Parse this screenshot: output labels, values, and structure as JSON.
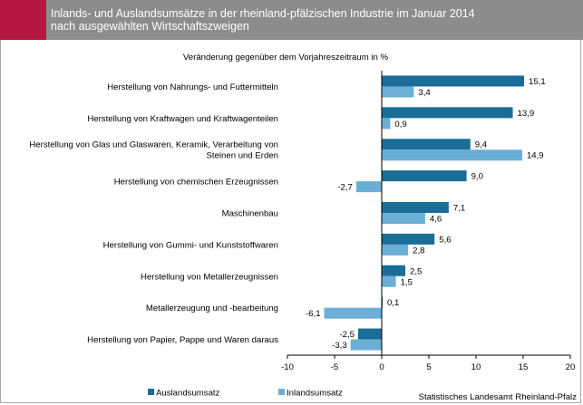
{
  "header": {
    "title_line1": "Inlands- und Auslandsumsätze in der rheinland-pfälzischen Industrie im Januar 2014",
    "title_line2": "nach ausgewählten Wirtschaftszweigen",
    "accent_color": "#b5173f",
    "bar_color": "#8c8c8c"
  },
  "source": "Statistisches Landesamt Rheinland-Pfalz",
  "chart_data": {
    "type": "bar",
    "orientation": "horizontal",
    "subtitle": "Veränderung gegenüber dem Vorjahreszeitraum  in %",
    "categories": [
      [
        "Herstellung von Nahrungs- und Futtermitteln"
      ],
      [
        "Herstellung von Kraftwagen und Kraftwagenteilen"
      ],
      [
        "Herstellung von Glas und Glaswaren, Keramik, Verarbeitung von",
        "Steinen und Erden"
      ],
      [
        "Herstellung von chemischen Erzeugnissen"
      ],
      [
        "Maschinenbau"
      ],
      [
        "Herstellung von Gummi- und Kunststoffwaren"
      ],
      [
        "Herstellung von Metallerzeugnissen"
      ],
      [
        "Metallerzeugung und -bearbeitung"
      ],
      [
        "Herstellung von Papier, Pappe und Waren daraus"
      ]
    ],
    "series": [
      {
        "name": "Auslandsumsatz",
        "color": "#1a6d96",
        "values": [
          15.1,
          13.9,
          9.4,
          9.0,
          7.1,
          5.6,
          2.5,
          0.1,
          -2.5
        ],
        "labels": [
          "15,1",
          "13,9",
          "9,4",
          "9,0",
          "7,1",
          "5,6",
          "2,5",
          "0,1",
          "-2,5"
        ]
      },
      {
        "name": "Inlandsumsatz",
        "color": "#6baed6",
        "values": [
          3.4,
          0.9,
          14.9,
          -2.7,
          4.6,
          2.8,
          1.5,
          -6.1,
          -3.3
        ],
        "labels": [
          "3,4",
          "0,9",
          "14,9",
          "-2,7",
          "4,6",
          "2,8",
          "1,5",
          "-6,1",
          "-3,3"
        ]
      }
    ],
    "xlim": [
      -10,
      20
    ],
    "xticks": [
      -10,
      -5,
      0,
      5,
      10,
      15,
      20
    ],
    "xtick_labels": [
      "-10",
      "-5",
      "0",
      "5",
      "10",
      "15",
      "20"
    ],
    "grid": false,
    "legend_position": "bottom"
  }
}
